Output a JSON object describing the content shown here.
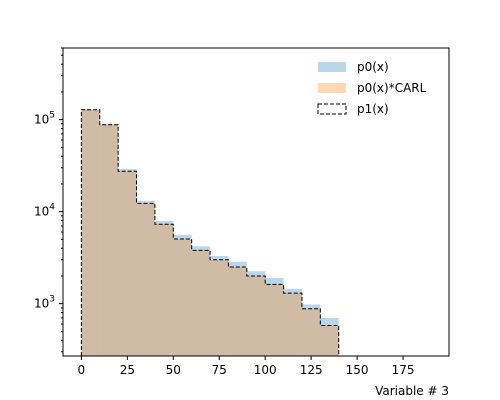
{
  "chart_data": {
    "type": "histogram",
    "title": "",
    "xlabel": "Variable # 3",
    "ylabel": "",
    "yscale": "log",
    "xlim": [
      -10,
      200
    ],
    "ylim": [
      270,
      600000
    ],
    "grid": false,
    "legend_position": "top-right",
    "bin_edges": [
      0,
      10,
      20,
      30,
      40,
      50,
      60,
      70,
      80,
      90,
      100,
      110,
      120,
      130,
      140
    ],
    "x_ticks": [
      0,
      25,
      50,
      75,
      100,
      125,
      150,
      175
    ],
    "x_tick_labels": [
      "0",
      "25",
      "50",
      "75",
      "100",
      "125",
      "150",
      "175"
    ],
    "y_ticks": [
      1000,
      10000,
      100000
    ],
    "y_tick_base": "10",
    "y_tick_exponents": [
      "3",
      "4",
      "5"
    ],
    "series": [
      {
        "name": "p0(x)",
        "style": "filled",
        "color": "#1f77b4",
        "alpha": 0.3,
        "values": [
          128000,
          89000,
          29000,
          13000,
          7900,
          5600,
          4200,
          3300,
          2850,
          2250,
          1900,
          1450,
          980,
          700
        ]
      },
      {
        "name": "p0(x)*CARL",
        "style": "filled",
        "color": "#ff7f0e",
        "alpha": 0.3,
        "values": [
          128000,
          88000,
          27500,
          12300,
          7300,
          5050,
          3800,
          3000,
          2500,
          2000,
          1620,
          1300,
          880,
          580
        ]
      },
      {
        "name": "p1(x)",
        "style": "dashed-step",
        "color": "#000000",
        "values": [
          128000,
          88000,
          27500,
          12300,
          7300,
          5050,
          3800,
          3000,
          2500,
          2000,
          1620,
          1300,
          880,
          580
        ]
      }
    ]
  }
}
